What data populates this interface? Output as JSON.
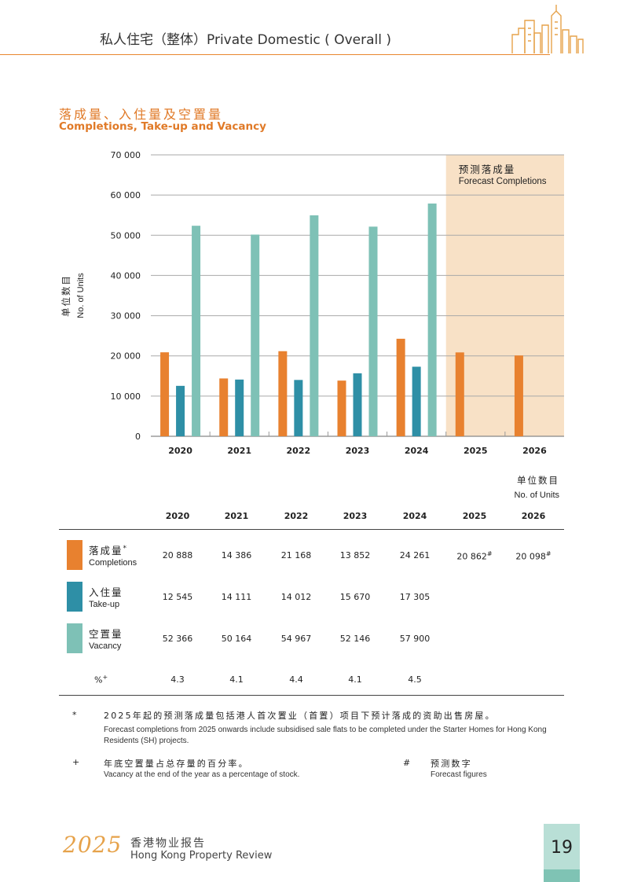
{
  "header": {
    "title": "私人住宅（整体）Private Domestic ( Overall )"
  },
  "section": {
    "title_zh": "落成量、入住量及空置量",
    "title_en": "Completions, Take-up and Vacancy"
  },
  "colors": {
    "completions": "#e8812f",
    "takeup": "#2e8fa6",
    "vacancy": "#7ec1b6",
    "forecast_bg": "#f8e1c6",
    "accent": "#e8862e"
  },
  "chart_data": {
    "type": "bar",
    "categories": [
      "2020",
      "2021",
      "2022",
      "2023",
      "2024",
      "2025",
      "2026"
    ],
    "series": [
      {
        "name": "落成量 Completions",
        "values": [
          20888,
          14386,
          21168,
          13852,
          24261,
          20862,
          20098
        ]
      },
      {
        "name": "入住量 Take-up",
        "values": [
          12545,
          14111,
          14012,
          15670,
          17305,
          null,
          null
        ]
      },
      {
        "name": "空置量 Vacancy",
        "values": [
          52366,
          50164,
          54967,
          52146,
          57900,
          null,
          null
        ]
      }
    ],
    "ylabel_zh": "单位数目",
    "ylabel_en": "No. of Units",
    "ylim": [
      0,
      70000
    ],
    "yticks": [
      0,
      10000,
      20000,
      30000,
      40000,
      50000,
      60000,
      70000
    ],
    "ytick_labels": [
      "0",
      "10 000",
      "20 000",
      "30 000",
      "40 000",
      "50 000",
      "60 000",
      "70 000"
    ],
    "forecast_categories": [
      "2025",
      "2026"
    ],
    "forecast_label_zh": "预测落成量",
    "forecast_label_en": "Forecast Completions",
    "grid": true
  },
  "table": {
    "units_zh": "单位数目",
    "units_en": "No. of Units",
    "years": [
      "2020",
      "2021",
      "2022",
      "2023",
      "2024",
      "2025",
      "2026"
    ],
    "rows": [
      {
        "label_zh": "落成量",
        "label_mark": "*",
        "label_en": "Completions",
        "values": [
          "20 888",
          "14 386",
          "21 168",
          "13 852",
          "24 261",
          "20 862",
          "20 098"
        ],
        "marks": [
          "",
          "",
          "",
          "",
          "",
          "#",
          "#"
        ]
      },
      {
        "label_zh": "入住量",
        "label_en": "Take-up",
        "values": [
          "12 545",
          "14 111",
          "14 012",
          "15 670",
          "17 305",
          "",
          ""
        ]
      },
      {
        "label_zh": "空置量",
        "label_en": "Vacancy",
        "values": [
          "52 366",
          "50 164",
          "54 967",
          "52 146",
          "57 900",
          "",
          ""
        ]
      }
    ],
    "pct": {
      "label": "%",
      "mark": "+",
      "values": [
        "4.3",
        "4.1",
        "4.4",
        "4.1",
        "4.5"
      ]
    }
  },
  "notes": {
    "star_symbol": "*",
    "star_zh": "2025年起的预测落成量包括港人首次置业（首置）项目下预计落成的资助出售房屋。",
    "star_en": "Forecast completions from 2025 onwards include subsidised sale flats to be completed under the Starter Homes for Hong Kong Residents (SH) projects.",
    "plus_symbol": "+",
    "plus_zh": "年底空置量占总存量的百分率。",
    "plus_en": "Vacancy at the end of the year as a percentage of stock.",
    "hash_symbol": "#",
    "hash_zh": "预测数字",
    "hash_en": "Forecast figures"
  },
  "footer": {
    "year": "2025",
    "title_zh": "香港物业报告",
    "title_en": "Hong Kong Property Review",
    "page": "19"
  }
}
